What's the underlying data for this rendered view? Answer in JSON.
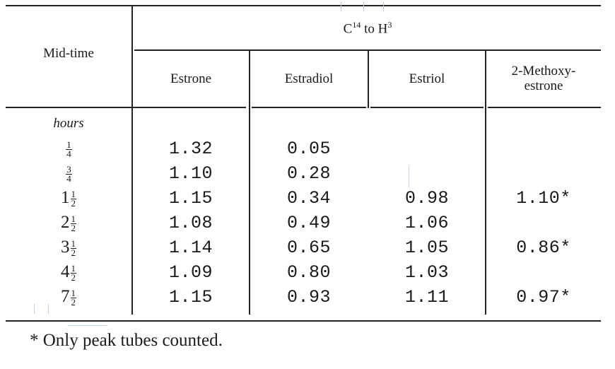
{
  "table": {
    "header": {
      "row_label": "Mid-time",
      "group_label_base1": "C",
      "group_label_sup1": "14",
      "group_label_mid": " to H",
      "group_label_sup2": "3",
      "columns": [
        "Estrone",
        "Estradiol",
        "Estriol",
        "2-Methoxy-estrone"
      ],
      "col4_line1": "2-Methoxy-",
      "col4_line2": "estrone"
    },
    "unit_row": "hours",
    "rows": [
      {
        "whole": "",
        "num": "1",
        "den": "4",
        "estrone": "1.32",
        "estradiol": "0.05",
        "estriol": "",
        "methoxy": ""
      },
      {
        "whole": "",
        "num": "3",
        "den": "4",
        "estrone": "1.10",
        "estradiol": "0.28",
        "estriol": "",
        "methoxy": ""
      },
      {
        "whole": "1",
        "num": "1",
        "den": "2",
        "estrone": "1.15",
        "estradiol": "0.34",
        "estriol": "0.98",
        "methoxy": "1.10*"
      },
      {
        "whole": "2",
        "num": "1",
        "den": "2",
        "estrone": "1.08",
        "estradiol": "0.49",
        "estriol": "1.06",
        "methoxy": ""
      },
      {
        "whole": "3",
        "num": "1",
        "den": "2",
        "estrone": "1.14",
        "estradiol": "0.65",
        "estriol": "1.05",
        "methoxy": "0.86*"
      },
      {
        "whole": "4",
        "num": "1",
        "den": "2",
        "estrone": "1.09",
        "estradiol": "0.80",
        "estriol": "1.03",
        "methoxy": ""
      },
      {
        "whole": "7",
        "num": "1",
        "den": "2",
        "estrone": "1.15",
        "estradiol": "0.93",
        "estriol": "1.11",
        "methoxy": "0.97*"
      }
    ]
  },
  "footnote": "* Only peak tubes counted."
}
